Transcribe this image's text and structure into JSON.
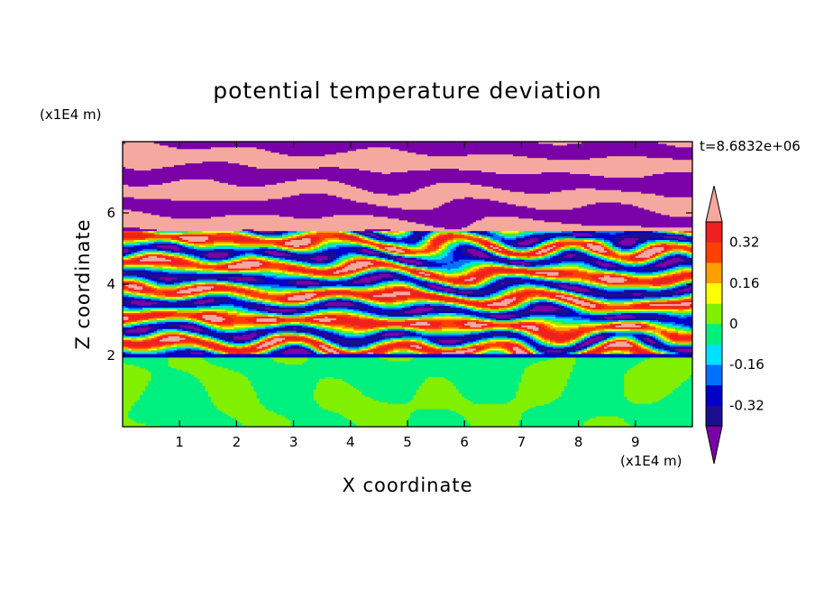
{
  "chart_data": {
    "type": "heatmap",
    "title": "potential temperature deviation",
    "xlabel": "X coordinate",
    "ylabel": "Z coordinate",
    "x_unit_label": "(x1E4 m)",
    "y_unit_label": "(x1E4 m)",
    "xlim": [
      0,
      10
    ],
    "ylim": [
      0,
      8
    ],
    "xticks": [
      "1",
      "2",
      "3",
      "4",
      "5",
      "6",
      "7",
      "8",
      "9"
    ],
    "yticks": [
      "2",
      "4",
      "6"
    ],
    "time_label": "t=8.6832e+06",
    "colorbar": {
      "levels": [
        -0.4,
        -0.32,
        -0.24,
        -0.16,
        -0.08,
        0,
        0.08,
        0.16,
        0.24,
        0.32,
        0.4
      ],
      "colors": [
        "#7a00a8",
        "#1c0f8f",
        "#0000c8",
        "#0070ff",
        "#00e0ff",
        "#00f080",
        "#80f000",
        "#ffff00",
        "#ffa000",
        "#ff4000",
        "#f02020",
        "#f4a8a0"
      ],
      "tick_labels": [
        "0.32",
        "0.16",
        "0",
        "-0.16",
        "-0.32"
      ],
      "tick_values": [
        0.32,
        0.16,
        0,
        -0.16,
        -0.32
      ],
      "extend": "both"
    },
    "bands": [
      {
        "z": [
          0,
          1.95
        ],
        "pattern": "green mix"
      },
      {
        "z": [
          1.95,
          2.05
        ],
        "pattern": "dark blue"
      },
      {
        "z": [
          2.05,
          5.5
        ],
        "pattern": "mixed stripes"
      },
      {
        "z": [
          5.5,
          8.0
        ],
        "pattern": "purple and pink"
      }
    ]
  }
}
